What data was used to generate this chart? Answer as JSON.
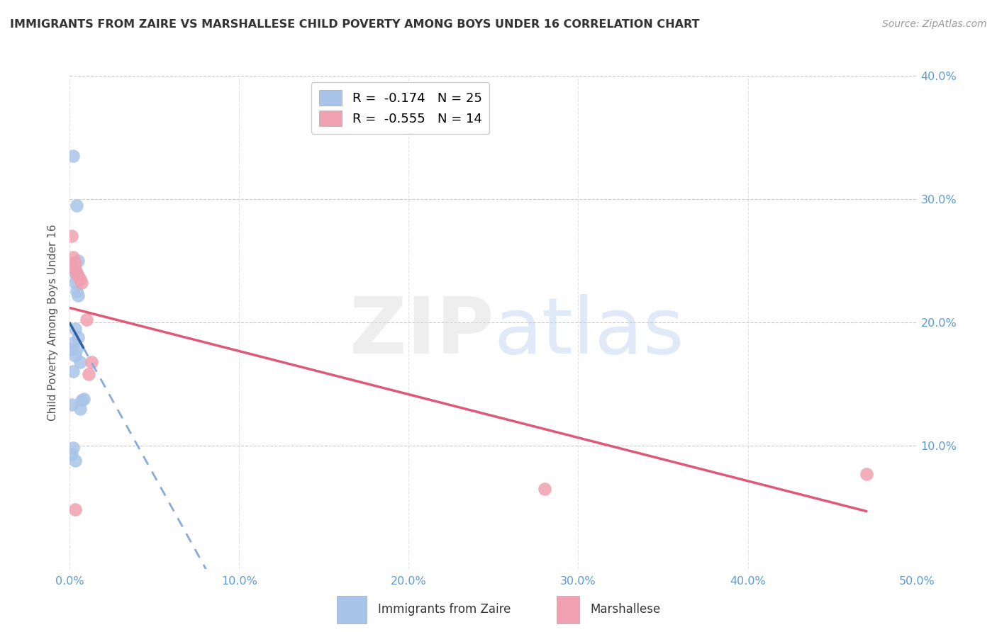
{
  "title": "IMMIGRANTS FROM ZAIRE VS MARSHALLESE CHILD POVERTY AMONG BOYS UNDER 16 CORRELATION CHART",
  "source": "Source: ZipAtlas.com",
  "ylabel": "Child Poverty Among Boys Under 16",
  "xlim": [
    0,
    0.5
  ],
  "ylim": [
    0,
    0.4
  ],
  "zaire_color": "#a8c4e8",
  "marshallese_color": "#f0a0b0",
  "zaire_line_color": "#3060a0",
  "marshallese_line_color": "#e05878",
  "zaire_line_dash_color": "#88aadd",
  "legend_r_zaire": "R =  -0.174",
  "legend_n_zaire": "N = 25",
  "legend_r_marsh": "R =  -0.555",
  "legend_n_marsh": "N = 14",
  "zaire_x": [
    0.002,
    0.004,
    0.005,
    0.001,
    0.002,
    0.003,
    0.004,
    0.003,
    0.004,
    0.005,
    0.003,
    0.002,
    0.001,
    0.003,
    0.004,
    0.005,
    0.002,
    0.006,
    0.001,
    0.002,
    0.003,
    0.001,
    0.006,
    0.007,
    0.008
  ],
  "zaire_y": [
    0.335,
    0.295,
    0.25,
    0.248,
    0.243,
    0.24,
    0.237,
    0.232,
    0.225,
    0.222,
    0.195,
    0.183,
    0.178,
    0.173,
    0.178,
    0.188,
    0.16,
    0.168,
    0.093,
    0.098,
    0.088,
    0.133,
    0.13,
    0.137,
    0.138
  ],
  "marshallese_x": [
    0.001,
    0.002,
    0.003,
    0.003,
    0.004,
    0.005,
    0.006,
    0.007,
    0.01,
    0.013,
    0.011,
    0.28,
    0.47,
    0.003
  ],
  "marshallese_y": [
    0.27,
    0.253,
    0.248,
    0.243,
    0.24,
    0.238,
    0.235,
    0.232,
    0.202,
    0.168,
    0.158,
    0.065,
    0.077,
    0.048
  ]
}
